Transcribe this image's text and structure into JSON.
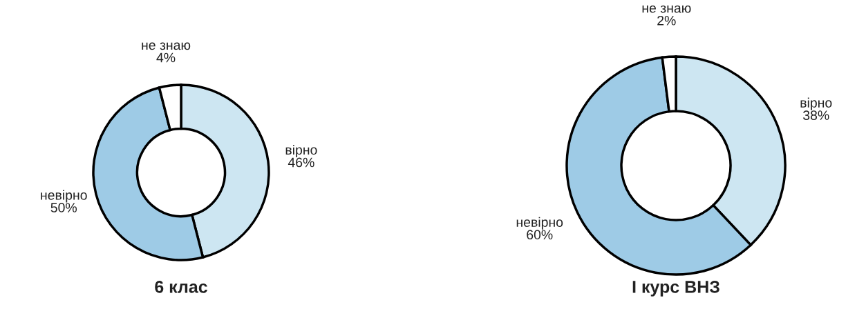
{
  "chart_data": [
    {
      "type": "donut",
      "title": "6 клас",
      "categories": [
        "вірно",
        "невірно",
        "не знаю"
      ],
      "values": [
        46,
        50,
        4
      ],
      "value_labels": [
        "46%",
        "50%",
        "4%"
      ],
      "colors": [
        "#cde6f2",
        "#9ecbe6",
        "#ffffff"
      ]
    },
    {
      "type": "donut",
      "title": "I курс ВНЗ",
      "categories": [
        "вірно",
        "невірно",
        "не знаю"
      ],
      "values": [
        38,
        60,
        2
      ],
      "value_labels": [
        "38%",
        "60%",
        "2%"
      ],
      "colors": [
        "#cde6f2",
        "#9ecbe6",
        "#ffffff"
      ]
    }
  ]
}
